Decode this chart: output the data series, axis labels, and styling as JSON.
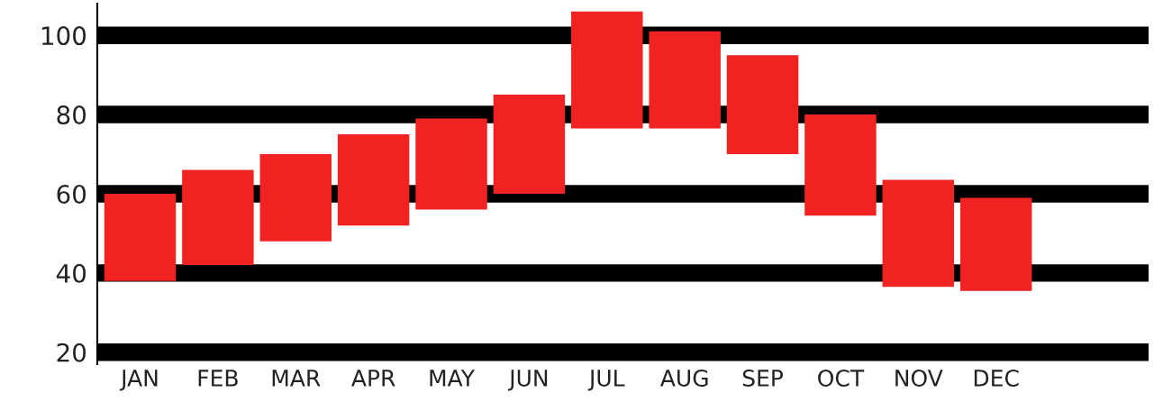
{
  "chart_data": {
    "type": "bar",
    "categories": [
      "JAN",
      "FEB",
      "MAR",
      "APR",
      "MAY",
      "JUN",
      "JUL",
      "AUG",
      "SEP",
      "OCT",
      "NOV",
      "DEC"
    ],
    "base": [
      38,
      42,
      48,
      52,
      56,
      60,
      76.5,
      76.5,
      70,
      54.5,
      36.5,
      35.5
    ],
    "values": [
      22,
      24,
      22,
      23,
      23,
      25,
      29.5,
      24.5,
      25,
      25.5,
      27,
      23.5
    ],
    "color": "#f02222",
    "ylim": [
      17,
      108
    ],
    "yticks": [
      20,
      40,
      60,
      80,
      100
    ],
    "grid": "y"
  }
}
